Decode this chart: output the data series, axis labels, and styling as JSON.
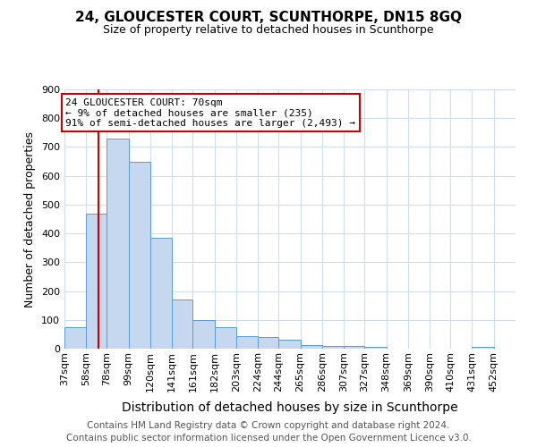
{
  "title": "24, GLOUCESTER COURT, SCUNTHORPE, DN15 8GQ",
  "subtitle": "Size of property relative to detached houses in Scunthorpe",
  "xlabel": "Distribution of detached houses by size in Scunthorpe",
  "ylabel": "Number of detached properties",
  "footer_line1": "Contains HM Land Registry data © Crown copyright and database right 2024.",
  "footer_line2": "Contains public sector information licensed under the Open Government Licence v3.0.",
  "categories": [
    "37sqm",
    "58sqm",
    "78sqm",
    "99sqm",
    "120sqm",
    "141sqm",
    "161sqm",
    "182sqm",
    "203sqm",
    "224sqm",
    "244sqm",
    "265sqm",
    "286sqm",
    "307sqm",
    "327sqm",
    "348sqm",
    "369sqm",
    "390sqm",
    "410sqm",
    "431sqm",
    "452sqm"
  ],
  "values": [
    75,
    470,
    730,
    650,
    385,
    172,
    98,
    75,
    45,
    40,
    30,
    12,
    10,
    10,
    7,
    0,
    0,
    0,
    0,
    7,
    0
  ],
  "bar_color": "#c5d8f0",
  "bar_edge_color": "#5b9bd5",
  "bin_edges": [
    37,
    58,
    78,
    99,
    120,
    141,
    161,
    182,
    203,
    224,
    244,
    265,
    286,
    307,
    327,
    348,
    369,
    390,
    410,
    431,
    452,
    473
  ],
  "property_line_x": 70,
  "property_line_color": "#cc0000",
  "annotation_line1": "24 GLOUCESTER COURT: 70sqm",
  "annotation_line2": "← 9% of detached houses are smaller (235)",
  "annotation_line3": "91% of semi-detached houses are larger (2,493) →",
  "annotation_box_color": "#cc0000",
  "ylim": [
    0,
    900
  ],
  "yticks": [
    0,
    100,
    200,
    300,
    400,
    500,
    600,
    700,
    800,
    900
  ],
  "background_color": "#ffffff",
  "grid_color": "#d0dce8",
  "title_fontsize": 11,
  "subtitle_fontsize": 9,
  "xlabel_fontsize": 10,
  "ylabel_fontsize": 9,
  "tick_fontsize": 8,
  "annotation_fontsize": 8,
  "footer_fontsize": 7.5
}
